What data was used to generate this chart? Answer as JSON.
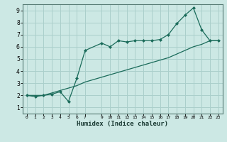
{
  "title": "",
  "xlabel": "Humidex (Indice chaleur)",
  "ylabel": "",
  "bg_color": "#cce8e4",
  "line_color": "#1a6b5a",
  "grid_color": "#aacfcb",
  "xlim": [
    -0.5,
    23.5
  ],
  "ylim": [
    0.5,
    9.5
  ],
  "xticks": [
    0,
    1,
    2,
    3,
    4,
    5,
    6,
    7,
    9,
    10,
    11,
    12,
    13,
    14,
    15,
    16,
    17,
    18,
    19,
    20,
    21,
    22,
    23
  ],
  "yticks": [
    1,
    2,
    3,
    4,
    5,
    6,
    7,
    8,
    9
  ],
  "line1_x": [
    0,
    1,
    2,
    3,
    4,
    5,
    6,
    7,
    9,
    10,
    11,
    12,
    13,
    14,
    15,
    16,
    17,
    18,
    19,
    20,
    21,
    22,
    23
  ],
  "line1_y": [
    2.0,
    1.9,
    2.0,
    2.1,
    2.3,
    1.5,
    3.4,
    5.7,
    6.3,
    6.0,
    6.5,
    6.4,
    6.5,
    6.5,
    6.5,
    6.6,
    7.0,
    7.9,
    8.6,
    9.2,
    7.4,
    6.5,
    6.5
  ],
  "line2_x": [
    0,
    1,
    2,
    3,
    4,
    5,
    6,
    7,
    9,
    10,
    11,
    12,
    13,
    14,
    15,
    16,
    17,
    18,
    19,
    20,
    21,
    22,
    23
  ],
  "line2_y": [
    2.0,
    2.0,
    2.0,
    2.2,
    2.4,
    2.6,
    2.8,
    3.1,
    3.5,
    3.7,
    3.9,
    4.1,
    4.3,
    4.5,
    4.7,
    4.9,
    5.1,
    5.4,
    5.7,
    6.0,
    6.2,
    6.5,
    6.5
  ]
}
